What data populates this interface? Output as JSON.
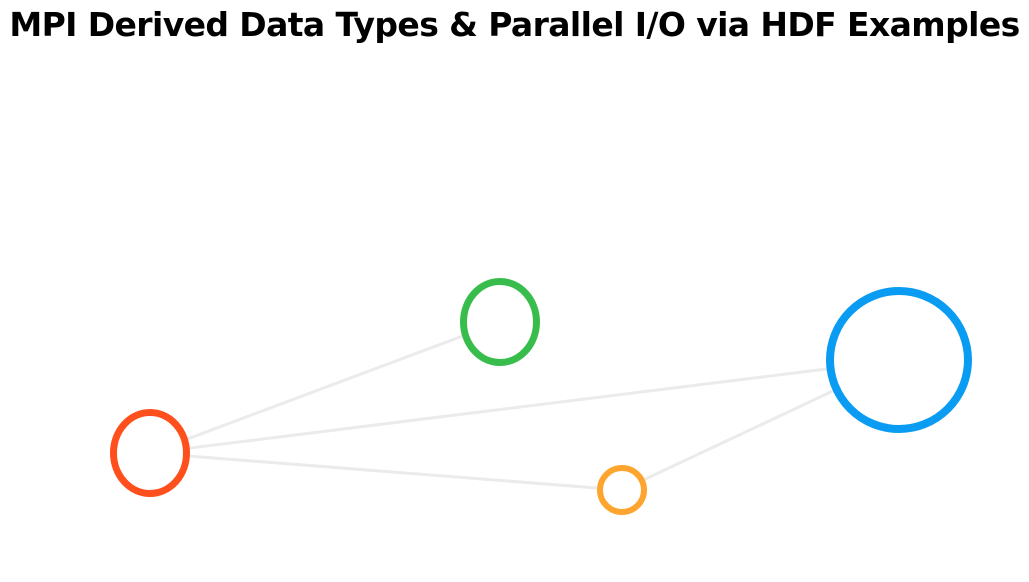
{
  "header": {
    "title": "MPI Derived Data Types & Parallel I/O via HDF Examples"
  },
  "diagram": {
    "edge_color": "#ebebeb",
    "nodes": [
      {
        "id": "red",
        "color": "#fe4f1c"
      },
      {
        "id": "green",
        "color": "#38bd4c"
      },
      {
        "id": "orange",
        "color": "#fda52e"
      },
      {
        "id": "blue",
        "color": "#0a9cf2"
      }
    ],
    "edges": [
      {
        "from": "red",
        "to": "green"
      },
      {
        "from": "red",
        "to": "blue"
      },
      {
        "from": "red",
        "to": "orange"
      },
      {
        "from": "orange",
        "to": "blue"
      }
    ]
  }
}
